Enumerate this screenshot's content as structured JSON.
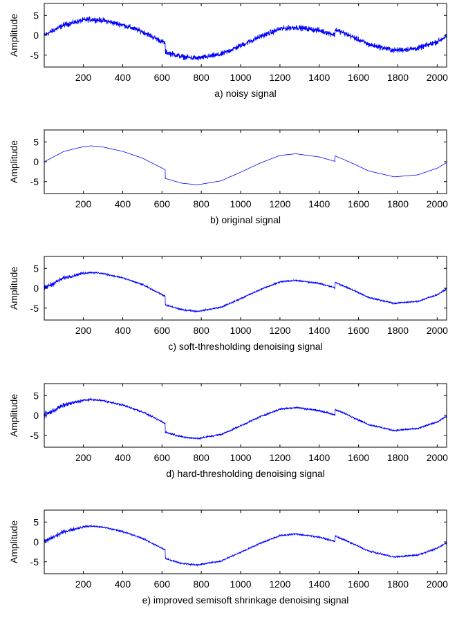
{
  "chart_data": [
    {
      "type": "line",
      "caption": "a) noisy signal",
      "ylabel": "Amplitude",
      "xlim": [
        1,
        2048
      ],
      "ylim": [
        -8,
        8
      ],
      "xticks": [
        200,
        400,
        600,
        800,
        1000,
        1200,
        1400,
        1600,
        1800,
        2000
      ],
      "yticks": [
        -5,
        0,
        5
      ],
      "line_color": "#0000ff",
      "noise_amplitude": 1.0,
      "x": [
        0,
        100,
        200,
        240,
        300,
        400,
        500,
        615,
        616,
        700,
        780,
        900,
        1000,
        1100,
        1200,
        1280,
        1400,
        1479,
        1480,
        1550,
        1650,
        1780,
        1900,
        2000,
        2047
      ],
      "y": [
        0,
        2.6,
        3.8,
        4.0,
        3.7,
        2.6,
        0.9,
        -2.0,
        -4.2,
        -5.4,
        -5.8,
        -4.8,
        -2.6,
        -0.3,
        1.6,
        2.0,
        1.2,
        0.1,
        1.5,
        0.0,
        -2.3,
        -3.8,
        -3.3,
        -1.6,
        -0.2
      ]
    },
    {
      "type": "line",
      "caption": "b) original signal",
      "ylabel": "Amplitude",
      "xlim": [
        1,
        2048
      ],
      "ylim": [
        -8,
        8
      ],
      "xticks": [
        200,
        400,
        600,
        800,
        1000,
        1200,
        1400,
        1600,
        1800,
        2000
      ],
      "yticks": [
        -5,
        0,
        5
      ],
      "line_color": "#0000ff",
      "noise_amplitude": 0,
      "x": [
        0,
        100,
        200,
        240,
        300,
        400,
        500,
        615,
        616,
        700,
        780,
        900,
        1000,
        1100,
        1200,
        1280,
        1400,
        1479,
        1480,
        1550,
        1650,
        1780,
        1900,
        2000,
        2047
      ],
      "y": [
        0,
        2.6,
        3.8,
        4.0,
        3.7,
        2.6,
        0.9,
        -2.0,
        -4.2,
        -5.4,
        -5.8,
        -4.8,
        -2.6,
        -0.3,
        1.6,
        2.0,
        1.2,
        0.1,
        1.5,
        0.0,
        -2.3,
        -3.8,
        -3.3,
        -1.6,
        -0.2
      ]
    },
    {
      "type": "line",
      "caption": "c) soft-thresholding denoising signal",
      "ylabel": "Amplitude",
      "xlim": [
        1,
        2048
      ],
      "ylim": [
        -8,
        8
      ],
      "xticks": [
        200,
        400,
        600,
        800,
        1000,
        1200,
        1400,
        1600,
        1800,
        2000
      ],
      "yticks": [
        -5,
        0,
        5
      ],
      "line_color": "#0000ff",
      "noise_amplitude": 0.3,
      "x": [
        0,
        100,
        200,
        240,
        300,
        400,
        500,
        615,
        616,
        700,
        780,
        900,
        1000,
        1100,
        1200,
        1280,
        1400,
        1479,
        1480,
        1550,
        1650,
        1780,
        1900,
        2000,
        2047
      ],
      "y": [
        0,
        2.6,
        3.8,
        4.0,
        3.7,
        2.6,
        0.9,
        -2.0,
        -4.2,
        -5.4,
        -5.8,
        -4.8,
        -2.6,
        -0.3,
        1.6,
        2.0,
        1.2,
        0.1,
        1.5,
        0.0,
        -2.3,
        -3.8,
        -3.3,
        -1.6,
        -0.2
      ]
    },
    {
      "type": "line",
      "caption": "d) hard-thresholding denoising signal",
      "ylabel": "Amplitude",
      "xlim": [
        1,
        2048
      ],
      "ylim": [
        -8,
        8
      ],
      "xticks": [
        200,
        400,
        600,
        800,
        1000,
        1200,
        1400,
        1600,
        1800,
        2000
      ],
      "yticks": [
        -5,
        0,
        5
      ],
      "line_color": "#0000ff",
      "noise_amplitude": 0.35,
      "x": [
        0,
        100,
        200,
        240,
        300,
        400,
        500,
        615,
        616,
        700,
        780,
        900,
        1000,
        1100,
        1200,
        1280,
        1400,
        1479,
        1480,
        1550,
        1650,
        1780,
        1900,
        2000,
        2047
      ],
      "y": [
        0,
        2.6,
        3.8,
        4.0,
        3.7,
        2.6,
        0.9,
        -2.0,
        -4.2,
        -5.4,
        -5.8,
        -4.8,
        -2.6,
        -0.3,
        1.6,
        2.0,
        1.2,
        0.1,
        1.5,
        0.0,
        -2.3,
        -3.8,
        -3.3,
        -1.6,
        -0.2
      ]
    },
    {
      "type": "line",
      "caption": "e) improved semisoft shrinkage denoising signal",
      "ylabel": "Amplitude",
      "xlim": [
        1,
        2048
      ],
      "ylim": [
        -8,
        8
      ],
      "xticks": [
        200,
        400,
        600,
        800,
        1000,
        1200,
        1400,
        1600,
        1800,
        2000
      ],
      "yticks": [
        -5,
        0,
        5
      ],
      "line_color": "#0000ff",
      "noise_amplitude": 0.3,
      "x": [
        0,
        100,
        200,
        240,
        300,
        400,
        500,
        615,
        616,
        700,
        780,
        900,
        1000,
        1100,
        1200,
        1280,
        1400,
        1479,
        1480,
        1550,
        1650,
        1780,
        1900,
        2000,
        2047
      ],
      "y": [
        0,
        2.6,
        3.8,
        4.0,
        3.7,
        2.6,
        0.9,
        -2.0,
        -4.2,
        -5.4,
        -5.8,
        -4.8,
        -2.6,
        -0.3,
        1.6,
        2.0,
        1.2,
        0.1,
        1.5,
        0.0,
        -2.3,
        -3.8,
        -3.3,
        -1.6,
        -0.2
      ]
    }
  ]
}
